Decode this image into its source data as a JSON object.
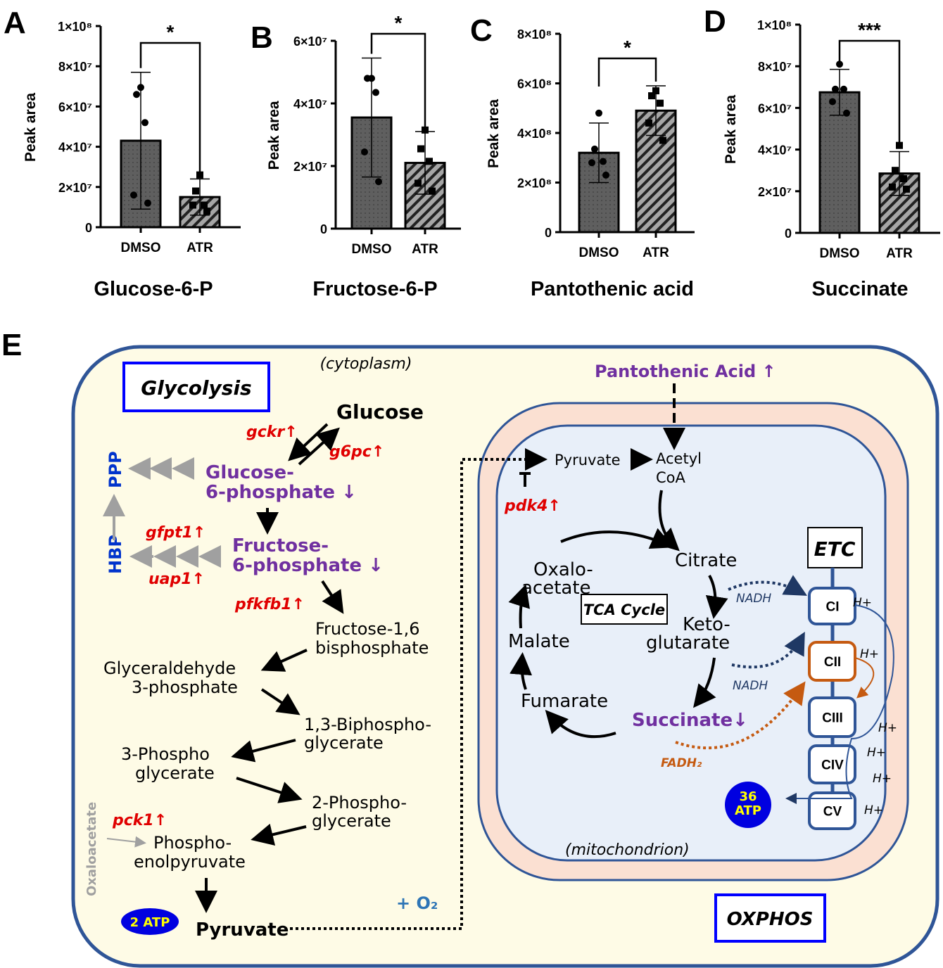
{
  "panel_letters": [
    "A",
    "B",
    "C",
    "D",
    "E"
  ],
  "chart_data": [
    {
      "type": "bar",
      "panel": "A",
      "title": "Glucose-6-P",
      "ylabel": "Peak area",
      "categories": [
        "DMSO",
        "ATR"
      ],
      "ylim": [
        0,
        100000000
      ],
      "yticks": [
        0,
        20000000,
        40000000,
        60000000,
        80000000,
        100000000
      ],
      "ytick_labels": [
        "0",
        "2×10⁷",
        "4×10⁷",
        "6×10⁷",
        "8×10⁷",
        "1×10⁸"
      ],
      "values": [
        43000000,
        15000000
      ],
      "sd": [
        34000000,
        9000000
      ],
      "points": [
        [
          69500000,
          66000000,
          52000000,
          16000000,
          12000000
        ],
        [
          26000000,
          18000000,
          11000000,
          11000000,
          8000000
        ]
      ],
      "significance": "*"
    },
    {
      "type": "bar",
      "panel": "B",
      "title": "Fructose-6-P",
      "ylabel": "Peak area",
      "categories": [
        "DMSO",
        "ATR"
      ],
      "ylim": [
        0,
        60000000
      ],
      "yticks": [
        0,
        20000000,
        40000000,
        60000000
      ],
      "ytick_labels": [
        "0",
        "2×10⁷",
        "4×10⁷",
        "6×10⁷"
      ],
      "values": [
        35500000,
        21000000
      ],
      "sd": [
        19000000,
        10000000
      ],
      "points": [
        [
          48000000,
          48000000,
          43500000,
          24500000,
          15000000
        ],
        [
          31500000,
          25500000,
          21500000,
          14500000,
          12000000
        ]
      ],
      "significance": "*"
    },
    {
      "type": "bar",
      "panel": "C",
      "title": "Pantothenic acid",
      "ylabel": "Peak area",
      "categories": [
        "DMSO",
        "ATR"
      ],
      "ylim": [
        0,
        800000000
      ],
      "yticks": [
        0,
        200000000,
        400000000,
        600000000,
        800000000
      ],
      "ytick_labels": [
        "0",
        "2×10⁸",
        "4×10⁸",
        "6×10⁸",
        "8×10⁸"
      ],
      "values": [
        320000000,
        490000000
      ],
      "sd": [
        120000000,
        100000000
      ],
      "points": [
        [
          480000000,
          335000000,
          285000000,
          280000000,
          230000000
        ],
        [
          570000000,
          550000000,
          520000000,
          440000000,
          370000000
        ]
      ],
      "significance": "*"
    },
    {
      "type": "bar",
      "panel": "D",
      "title": "Succinate",
      "ylabel": "Peak area",
      "categories": [
        "DMSO",
        "ATR"
      ],
      "ylim": [
        0,
        100000000
      ],
      "yticks": [
        0,
        20000000,
        40000000,
        60000000,
        80000000,
        100000000
      ],
      "ytick_labels": [
        "0",
        "2×10⁷",
        "4×10⁷",
        "6×10⁷",
        "8×10⁷",
        "1×10⁸"
      ],
      "values": [
        67500000,
        28500000
      ],
      "sd": [
        11000000,
        10500000
      ],
      "points": [
        [
          81000000,
          69000000,
          69000000,
          63000000,
          57500000
        ],
        [
          42000000,
          30000000,
          26000000,
          22000000,
          21000000
        ]
      ],
      "significance": "***"
    }
  ],
  "colors": {
    "dmso_bar": "#5f5f5f",
    "atr_bar": "#a6a6a6",
    "membrane": "#2f5597",
    "cytoplasm": "#fefbe6",
    "intermembrane": "#fbe0d2",
    "matrix": "#e8eff9",
    "gene_up": "#e00000",
    "metabolite": "#7030a0",
    "pathway": "#0033cc",
    "fadh": "#c55a11",
    "atp": "#0000e0",
    "atp_text": "#ffff00"
  },
  "diagram": {
    "glycolysis": "Glycolysis",
    "cytoplasm": "(cytoplasm)",
    "glucose": "Glucose",
    "gckr": "gckr↑",
    "g6pc": "g6pc↑",
    "g6p_1": "Glucose-",
    "g6p_2": "6-phosphate ↓",
    "ppp": "PPP",
    "hbp": "HBP",
    "gfpt1": "gfpt1↑",
    "uap1": "uap1↑",
    "f6p_1": "Fructose-",
    "f6p_2": "6-phosphate ↓",
    "pfkfb1": "pfkfb1↑",
    "f16_1": "Fructose-1,6",
    "f16_2": "bisphosphate",
    "gap_1": "Glyceraldehyde",
    "gap_2": "3-phosphate",
    "bpg_1": "1,3-Biphospho-",
    "bpg_2": "glycerate",
    "pg3_1": "3-Phospho",
    "pg3_2": "glycerate",
    "pg2_1": "2-Phospho-",
    "pg2_2": "glycerate",
    "pck1": "pck1↑",
    "oxaloacetate_side": "Oxaloacetate",
    "pep_1": "Phospho-",
    "pep_2": "enolpyruvate",
    "pyruvate": "Pyruvate",
    "atp2": "2 ATP",
    "o2": "+ O₂",
    "pantothenic": "Pantothenic Acid ↑",
    "mito_pyruvate": "Pyruvate",
    "acetyl_1": "Acetyl",
    "acetyl_2": "CoA",
    "pdk4": "pdk4↑",
    "oxalo_1": "Oxalo-",
    "oxalo_2": "acetate",
    "citrate": "Citrate",
    "tca": "TCA Cycle",
    "keto_1": "Keto-",
    "keto_2": "glutarate",
    "malate": "Malate",
    "fumarate": "Fumarate",
    "succinate": "Succinate↓",
    "nadh1": "NADH",
    "nadh2": "NADH",
    "fadh2": "FADH₂",
    "etc": "ETC",
    "complexes": [
      "CI",
      "CII",
      "CIII",
      "CIV",
      "CV"
    ],
    "hplus": "H+",
    "atp36_1": "36",
    "atp36_2": "ATP",
    "mitochondrion": "(mitochondrion)",
    "oxphos": "OXPHOS"
  }
}
